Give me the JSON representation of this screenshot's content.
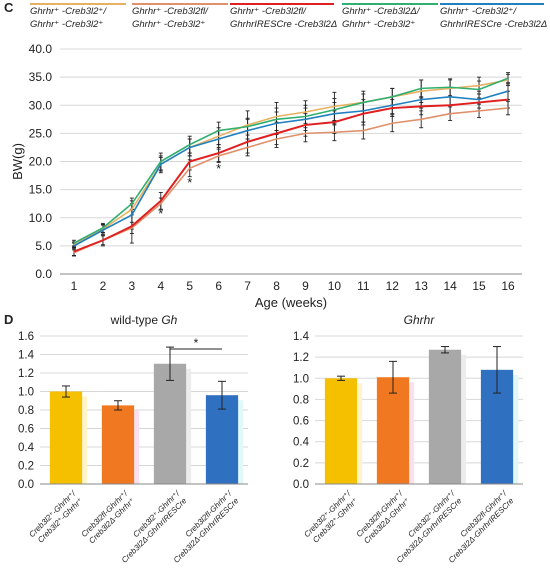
{
  "panels": {
    "c_letter": "C",
    "d_letter": "D"
  },
  "legend": [
    {
      "line1": "Ghrhr⁺ -Creb3l2⁺/",
      "line2": "Ghrhr⁺ -Creb3l2⁺",
      "color": "#e8b060"
    },
    {
      "line1": "Ghrhr⁺ -Creb3l2fl/",
      "line2": "Ghrhr⁺ -Creb3l2⁺",
      "color": "#e0906a"
    },
    {
      "line1": "Ghrhr⁺ -Creb3l2fl/",
      "line2": "GhrhrIRESCre -Creb3l2Δ",
      "color": "#e02020"
    },
    {
      "line1": "Ghrhr⁺ -Creb3l2Δ/",
      "line2": "Ghrhr⁺ -Creb3l2⁺",
      "color": "#30b070"
    },
    {
      "line1": "Ghrhr⁺ -Creb3l2⁺/",
      "line2": "GhrhrIRESCre -Creb3l2Δ",
      "color": "#2080c0"
    }
  ],
  "chart_data": [
    {
      "type": "line",
      "xlabel": "Age (weeks)",
      "ylabel": "BW(g)",
      "x": [
        1,
        2,
        3,
        4,
        5,
        6,
        7,
        8,
        9,
        10,
        11,
        12,
        13,
        14,
        15,
        16
      ],
      "ylim": [
        0,
        40
      ],
      "yticks": [
        "0.0",
        "5.0",
        "10.0",
        "15.0",
        "20.0",
        "25.0",
        "30.0",
        "35.0",
        "40.0"
      ],
      "grid": true,
      "series": [
        {
          "color": "#e8b060",
          "values": [
            5.2,
            8.0,
            11.5,
            19.5,
            22.5,
            24.5,
            26.5,
            28.0,
            28.8,
            29.8,
            30.5,
            31.5,
            32.5,
            33.0,
            33.5,
            34.5
          ],
          "err": [
            0.5,
            0.7,
            1.0,
            1.2,
            1.5,
            1.5,
            2.5,
            2.5,
            2.0,
            2.5,
            2.0,
            1.5,
            2.0,
            1.5,
            1.5,
            1.0
          ]
        },
        {
          "color": "#e0906a",
          "values": [
            3.8,
            6.0,
            8.2,
            12.5,
            18.8,
            21.0,
            22.5,
            24.0,
            25.0,
            25.2,
            25.5,
            26.8,
            27.5,
            28.5,
            29.0,
            29.5
          ],
          "err": [
            0.5,
            0.8,
            1.0,
            1.0,
            1.5,
            1.2,
            1.5,
            1.5,
            1.5,
            1.5,
            1.5,
            1.5,
            1.5,
            1.2,
            1.2,
            1.2
          ]
        },
        {
          "color": "#e02020",
          "values": [
            4.0,
            6.0,
            8.5,
            13.0,
            20.0,
            21.5,
            23.5,
            25.0,
            26.5,
            27.0,
            28.5,
            29.5,
            29.8,
            30.0,
            30.5,
            31.0
          ],
          "err": [
            0.8,
            1.0,
            3.0,
            1.5,
            1.5,
            1.5,
            2.0,
            2.0,
            2.0,
            2.0,
            2.0,
            1.5,
            1.5,
            1.5,
            1.5,
            1.5
          ]
        },
        {
          "color": "#30b070",
          "values": [
            5.5,
            8.2,
            12.5,
            20.0,
            23.0,
            25.5,
            26.2,
            27.5,
            28.0,
            29.2,
            30.5,
            31.5,
            33.0,
            33.2,
            32.8,
            34.8
          ],
          "err": [
            0.5,
            0.8,
            1.0,
            1.5,
            1.5,
            1.5,
            1.5,
            2.0,
            2.0,
            2.0,
            1.5,
            1.5,
            1.5,
            1.5,
            1.5,
            1.0
          ]
        },
        {
          "color": "#2080c0",
          "values": [
            5.0,
            7.8,
            10.5,
            19.5,
            22.5,
            24.0,
            25.5,
            26.8,
            27.5,
            28.5,
            29.0,
            30.0,
            31.0,
            31.5,
            31.0,
            32.5
          ],
          "err": [
            0.5,
            1.0,
            2.5,
            1.5,
            1.5,
            1.5,
            2.0,
            2.0,
            2.0,
            2.0,
            2.0,
            1.5,
            1.5,
            1.5,
            1.5,
            1.5
          ]
        }
      ],
      "annotations": [
        {
          "x": 4,
          "y": 11.0,
          "text": "*"
        },
        {
          "x": 5,
          "y": 16.5,
          "text": "*"
        },
        {
          "x": 6,
          "y": 19.0,
          "text": "*"
        }
      ]
    },
    {
      "type": "bar",
      "title": "wild-type Gh",
      "ylim": [
        0,
        1.6
      ],
      "yticks": [
        "0.0",
        "0.2",
        "0.4",
        "0.6",
        "0.8",
        "1.0",
        "1.2",
        "1.4",
        "1.6"
      ],
      "categories": [
        [
          "Creb3l2⁺-Ghrhr⁺/",
          "Creb3l2⁺-Ghrhr⁺"
        ],
        [
          "Creb3l2fl-Ghrhr⁺/",
          "Creb3l2Δ-Ghrhr⁺"
        ],
        [
          "Creb3l2⁺-Ghrhr⁺/",
          "Creb3l2Δ-GhrhrIRESCre"
        ],
        [
          "Creb3l2fl-Ghrhr⁺/",
          "Creb3l2Δ-GhrhrIRESCre"
        ]
      ],
      "values": [
        1.0,
        0.85,
        1.3,
        0.96
      ],
      "err": [
        0.06,
        0.05,
        0.18,
        0.15
      ],
      "colors": [
        "#f5c000",
        "#f07820",
        "#a8a8a8",
        "#3070c0"
      ],
      "shadows": [
        "#fff5c8",
        "#fce0ef",
        "#ececec",
        "#e0f8f8"
      ],
      "significance": {
        "from": 2,
        "to": 3,
        "y": 1.46,
        "text": "*"
      }
    },
    {
      "type": "bar",
      "title": "Ghrhr",
      "ylim": [
        0,
        1.4
      ],
      "yticks": [
        "0.0",
        "0.2",
        "0.4",
        "0.6",
        "0.8",
        "1.0",
        "1.2",
        "1.4"
      ],
      "categories": [
        [
          "Creb3l2⁺-Ghrhr⁺/",
          "Creb3l2⁺-Ghrhr⁺"
        ],
        [
          "Creb3l2fl-Ghrhr⁺/",
          "Creb3l2Δ-Ghrhr⁺"
        ],
        [
          "Creb3l2⁺-Ghrhr⁺/",
          "Creb3l2Δ-GhrhrIRESCre"
        ],
        [
          "Creb3l2fl-Ghrhr⁺/",
          "Creb3l2Δ-GhrhrIRESCre"
        ]
      ],
      "values": [
        1.0,
        1.01,
        1.27,
        1.08
      ],
      "err": [
        0.02,
        0.15,
        0.03,
        0.22
      ],
      "colors": [
        "#f5c000",
        "#f07820",
        "#a8a8a8",
        "#3070c0"
      ],
      "shadows": [
        "#fff5c8",
        "#fce0ef",
        "#ececec",
        "#e0f8f8"
      ]
    }
  ]
}
